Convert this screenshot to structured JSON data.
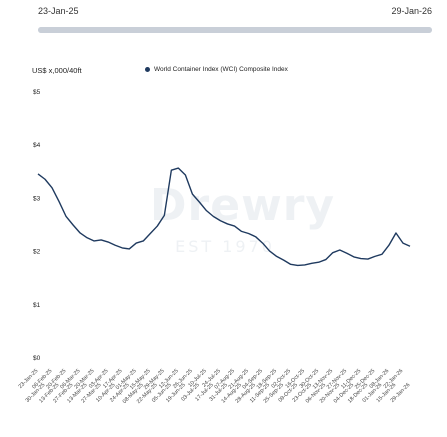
{
  "range_selector": {
    "start_label": "23-Jan-25",
    "end_label": "29-Jan-26",
    "fill_fraction": 1.0
  },
  "watermark": {
    "name": "Drewry",
    "established": "EST 1970"
  },
  "colors": {
    "line": "#1f3a5f",
    "track": "#d6dce4"
  },
  "chart_data": {
    "type": "line",
    "title": "",
    "ylabel": "US$ x,000/40ft",
    "xlabel": "",
    "ylim": [
      0,
      5
    ],
    "y_ticks": [
      0,
      1,
      2,
      3,
      4,
      5
    ],
    "y_tick_labels": [
      "$0",
      "$1",
      "$2",
      "$3",
      "$4",
      "$5"
    ],
    "legend_position": "top",
    "grid": false,
    "x": [
      "23-Jan-25",
      "30-Jan-25",
      "06-Feb-25",
      "13-Feb-25",
      "20-Feb-25",
      "27-Feb-25",
      "06-Mar-25",
      "13-Mar-25",
      "20-Mar-25",
      "27-Mar-25",
      "03-Apr-25",
      "10-Apr-25",
      "17-Apr-25",
      "24-Apr-25",
      "01-May-25",
      "08-May-25",
      "15-May-25",
      "22-May-25",
      "29-May-25",
      "05-Jun-25",
      "12-Jun-25",
      "19-Jun-25",
      "26-Jun-25",
      "03-Jul-25",
      "10-Jul-25",
      "17-Jul-25",
      "24-Jul-25",
      "31-Jul-25",
      "07-Aug-25",
      "14-Aug-25",
      "21-Aug-25",
      "28-Aug-25",
      "04-Sep-25",
      "11-Sep-25",
      "18-Sep-25",
      "25-Sep-25",
      "02-Oct-25",
      "09-Oct-25",
      "16-Oct-25",
      "23-Oct-25",
      "30-Oct-25",
      "06-Nov-25",
      "13-Nov-25",
      "20-Nov-25",
      "27-Nov-25",
      "04-Dec-25",
      "11-Dec-25",
      "18-Dec-25",
      "25-Dec-25",
      "01-Jan-26",
      "08-Jan-26",
      "15-Jan-26",
      "22-Jan-26",
      "29-Jan-26"
    ],
    "series": [
      {
        "name": "World Container Index (WCI) Composite Index",
        "values": [
          3.46,
          3.36,
          3.2,
          2.94,
          2.66,
          2.5,
          2.35,
          2.26,
          2.2,
          2.22,
          2.18,
          2.12,
          2.07,
          2.05,
          2.16,
          2.2,
          2.34,
          2.48,
          2.68,
          3.53,
          3.57,
          3.44,
          3.08,
          2.93,
          2.77,
          2.66,
          2.58,
          2.52,
          2.48,
          2.38,
          2.34,
          2.28,
          2.16,
          2.01,
          1.91,
          1.84,
          1.76,
          1.74,
          1.75,
          1.78,
          1.8,
          1.85,
          1.98,
          2.03,
          1.97,
          1.9,
          1.87,
          1.86,
          1.91,
          1.95,
          2.12,
          2.35,
          2.16,
          2.1
        ]
      }
    ]
  }
}
